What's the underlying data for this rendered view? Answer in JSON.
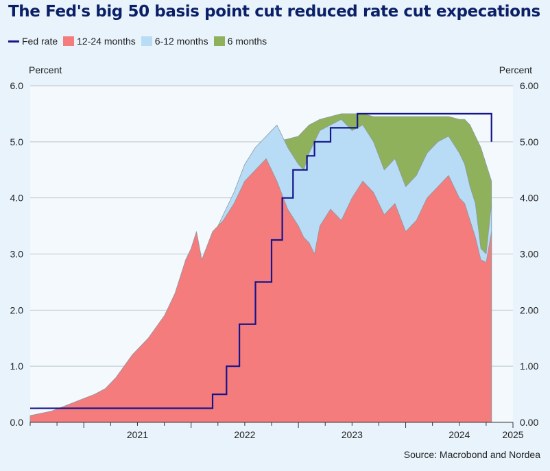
{
  "chart_data": {
    "type": "area",
    "title": "The Fed's big 50 basis point cut reduced rate cut expecations",
    "y_unit_left": "Percent",
    "y_unit_right": "Percent",
    "ylim": [
      0,
      6
    ],
    "xlim": [
      2020.5,
      2025.0
    ],
    "y_ticks_left": [
      "0.0",
      "1.0",
      "2.0",
      "3.0",
      "4.0",
      "5.0",
      "6.0"
    ],
    "y_ticks_right": [
      "0.00",
      "1.00",
      "2.00",
      "3.00",
      "4.00",
      "5.00",
      "6.00"
    ],
    "x_tick_labels": [
      {
        "label": "2021",
        "x": 2021.0
      },
      {
        "label": "2022",
        "x": 2022.0
      },
      {
        "label": "2023",
        "x": 2023.0
      },
      {
        "label": "2024",
        "x": 2024.0
      },
      {
        "label": "2025",
        "x": 2025.0
      }
    ],
    "grid": true,
    "legend_position": "top-left",
    "source": "Source: Macrobond and Nordea",
    "colors": {
      "fed": "#14148c",
      "m24": "#f47c7c",
      "m12": "#b8dcf5",
      "m6": "#8fb15c",
      "background": "#e8f3fb",
      "plot_background": "#f3f9fd",
      "grid": "#b9c4cc",
      "title": "#0b1f66"
    },
    "series": [
      {
        "name": "Fed rate",
        "type": "step",
        "x": [
          2020.5,
          2021.75,
          2022.2,
          2022.33,
          2022.45,
          2022.6,
          2022.75,
          2022.85,
          2022.95,
          2023.08,
          2023.15,
          2023.3,
          2023.55,
          2024.0,
          2024.71,
          2024.8
        ],
        "values": [
          0.25,
          0.25,
          0.5,
          1.0,
          1.75,
          2.5,
          3.25,
          4.0,
          4.5,
          4.75,
          5.0,
          5.25,
          5.5,
          5.5,
          5.5,
          5.0
        ]
      },
      {
        "name": "12-24 months",
        "x": [
          2020.5,
          2020.7,
          2020.9,
          2021.1,
          2021.2,
          2021.3,
          2021.45,
          2021.6,
          2021.75,
          2021.85,
          2021.95,
          2022.0,
          2022.05,
          2022.1,
          2022.2,
          2022.3,
          2022.4,
          2022.5,
          2022.6,
          2022.7,
          2022.8,
          2022.9,
          2023.0,
          2023.05,
          2023.1,
          2023.15,
          2023.2,
          2023.3,
          2023.4,
          2023.5,
          2023.6,
          2023.7,
          2023.8,
          2023.9,
          2024.0,
          2024.1,
          2024.2,
          2024.3,
          2024.4,
          2024.5,
          2024.55,
          2024.6,
          2024.65,
          2024.7,
          2024.75,
          2024.8
        ],
        "values": [
          0.12,
          0.2,
          0.35,
          0.5,
          0.6,
          0.8,
          1.2,
          1.5,
          1.9,
          2.3,
          2.9,
          3.1,
          3.4,
          2.9,
          3.4,
          3.6,
          3.9,
          4.3,
          4.5,
          4.7,
          4.3,
          3.8,
          3.5,
          3.3,
          3.2,
          3.0,
          3.5,
          3.8,
          3.6,
          4.0,
          4.3,
          4.1,
          3.7,
          3.9,
          3.4,
          3.6,
          4.0,
          4.2,
          4.4,
          4.0,
          3.9,
          3.6,
          3.3,
          2.9,
          2.85,
          3.4
        ]
      },
      {
        "name": "6-12 months",
        "x": [
          2020.5,
          2020.7,
          2020.9,
          2021.1,
          2021.2,
          2021.3,
          2021.45,
          2021.6,
          2021.75,
          2021.85,
          2021.95,
          2022.0,
          2022.05,
          2022.1,
          2022.2,
          2022.3,
          2022.4,
          2022.5,
          2022.6,
          2022.7,
          2022.8,
          2022.9,
          2023.0,
          2023.05,
          2023.1,
          2023.15,
          2023.2,
          2023.3,
          2023.4,
          2023.5,
          2023.6,
          2023.7,
          2023.8,
          2023.9,
          2024.0,
          2024.1,
          2024.2,
          2024.3,
          2024.4,
          2024.5,
          2024.55,
          2024.6,
          2024.65,
          2024.7,
          2024.75,
          2024.8
        ],
        "values": [
          0.1,
          0.12,
          0.15,
          0.18,
          0.2,
          0.25,
          0.4,
          0.75,
          1.3,
          2.0,
          2.7,
          3.0,
          3.3,
          2.8,
          3.3,
          3.7,
          4.1,
          4.6,
          4.9,
          5.1,
          5.3,
          4.9,
          4.6,
          4.5,
          4.8,
          5.0,
          5.2,
          5.3,
          5.4,
          5.2,
          5.3,
          5.0,
          4.5,
          4.7,
          4.2,
          4.4,
          4.8,
          5.0,
          5.1,
          4.8,
          4.6,
          4.2,
          3.9,
          3.1,
          3.0,
          3.9
        ]
      },
      {
        "name": "6 months",
        "x": [
          2020.5,
          2020.7,
          2020.9,
          2021.1,
          2021.2,
          2021.3,
          2021.45,
          2021.6,
          2021.75,
          2021.85,
          2021.95,
          2022.0,
          2022.05,
          2022.1,
          2022.2,
          2022.3,
          2022.4,
          2022.5,
          2022.6,
          2022.7,
          2022.8,
          2022.9,
          2023.0,
          2023.05,
          2023.1,
          2023.15,
          2023.2,
          2023.3,
          2023.4,
          2023.5,
          2023.6,
          2023.7,
          2023.8,
          2023.9,
          2024.0,
          2024.1,
          2024.2,
          2024.3,
          2024.4,
          2024.5,
          2024.55,
          2024.6,
          2024.65,
          2024.7,
          2024.75,
          2024.8
        ],
        "values": [
          0.08,
          0.09,
          0.1,
          0.1,
          0.1,
          0.12,
          0.2,
          0.3,
          0.7,
          1.3,
          2.0,
          2.3,
          2.6,
          2.6,
          2.9,
          3.3,
          3.8,
          4.2,
          4.6,
          4.9,
          5.0,
          5.05,
          5.1,
          5.2,
          5.3,
          5.35,
          5.4,
          5.45,
          5.5,
          5.5,
          5.5,
          5.45,
          5.45,
          5.45,
          5.45,
          5.45,
          5.45,
          5.45,
          5.45,
          5.4,
          5.4,
          5.3,
          5.1,
          4.9,
          4.6,
          4.3
        ]
      }
    ]
  }
}
